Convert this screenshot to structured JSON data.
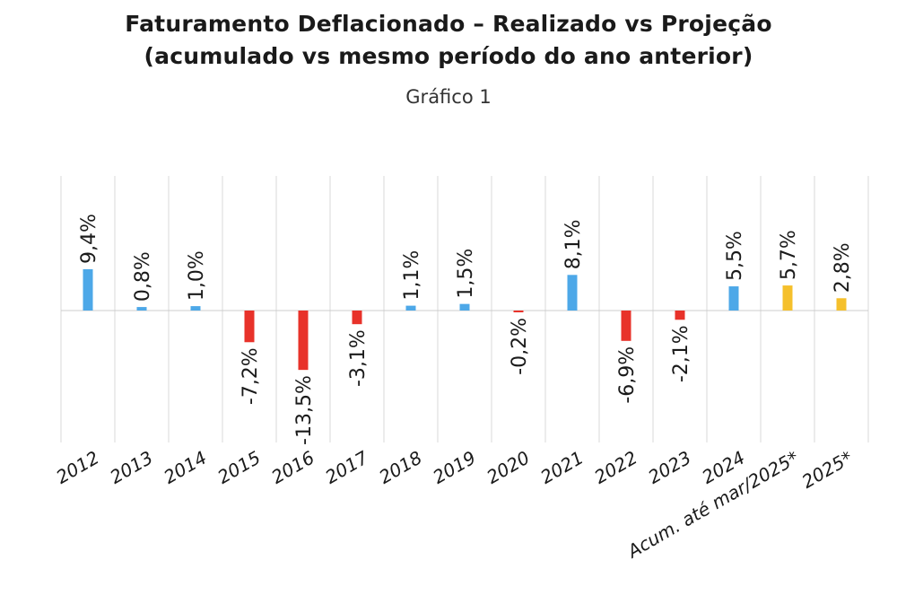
{
  "title_line1": "Faturamento Deflacionado – Realizado vs Projeção",
  "title_line2": "(acumulado vs mesmo período do ano anterior)",
  "subtitle": "Gráfico 1",
  "chart_data": {
    "type": "bar",
    "categories": [
      "2012",
      "2013",
      "2014",
      "2015",
      "2016",
      "2017",
      "2018",
      "2019",
      "2020",
      "2021",
      "2022",
      "2023",
      "2024",
      "Acum. até mar/2025*",
      "2025*"
    ],
    "values": [
      9.4,
      0.8,
      1.0,
      -7.2,
      -13.5,
      -3.1,
      1.1,
      1.5,
      -0.2,
      8.1,
      -6.9,
      -2.1,
      5.5,
      5.7,
      2.8
    ],
    "labels": [
      "9,4%",
      "0,8%",
      "1,0%",
      "-7,2%",
      "-13,5%",
      "-3,1%",
      "1,1%",
      "1,5%",
      "-0,2%",
      "8,1%",
      "-6,9%",
      "-2,1%",
      "5,5%",
      "5,7%",
      "2,8%"
    ],
    "status": [
      "realizado",
      "realizado",
      "realizado",
      "realizado",
      "realizado",
      "realizado",
      "realizado",
      "realizado",
      "realizado",
      "realizado",
      "realizado",
      "realizado",
      "realizado",
      "projecao",
      "projecao"
    ],
    "colors": {
      "positive": "#4DA8E8",
      "negative": "#E8322A",
      "projecao": "#F5C02C",
      "grid": "#D9D9D9",
      "axis": "#CCCCCC"
    },
    "grid": true,
    "legend": "none"
  }
}
